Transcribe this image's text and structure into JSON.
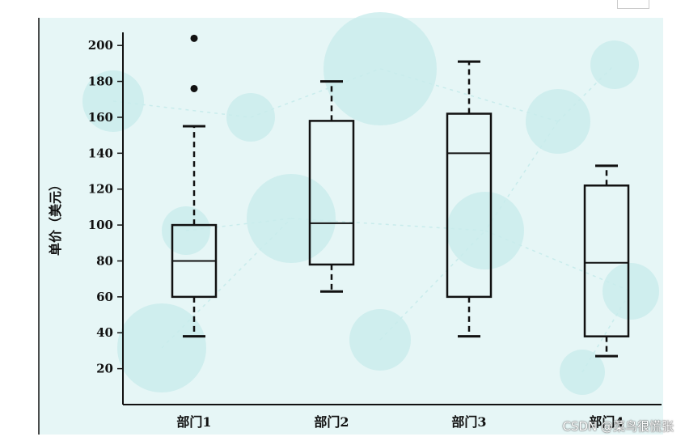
{
  "chart_data": {
    "type": "box",
    "title": "",
    "xlabel": "",
    "ylabel": "单价（美元）",
    "ylim": [
      0,
      210
    ],
    "yticks": [
      20,
      40,
      60,
      80,
      100,
      120,
      140,
      160,
      180,
      200
    ],
    "categories": [
      "部门1",
      "部门2",
      "部门3",
      "部门4"
    ],
    "boxes": [
      {
        "category": "部门1",
        "whisker_low": 38,
        "q1": 60,
        "median": 80,
        "q3": 100,
        "whisker_high": 155,
        "outliers": [
          176,
          204
        ]
      },
      {
        "category": "部门2",
        "whisker_low": 63,
        "q1": 78,
        "median": 101,
        "q3": 158,
        "whisker_high": 180,
        "outliers": []
      },
      {
        "category": "部门3",
        "whisker_low": 38,
        "q1": 60,
        "median": 140,
        "q3": 162,
        "whisker_high": 191,
        "outliers": []
      },
      {
        "category": "部门4",
        "whisker_low": 27,
        "q1": 38,
        "median": 79,
        "q3": 122,
        "whisker_high": 133,
        "outliers": []
      }
    ],
    "grid": false,
    "colors": {
      "background": "#e6f6f6",
      "decor": "#c9ecec",
      "box_stroke": "#111111"
    }
  },
  "watermark": "CSDN @菜鸟很慌张"
}
